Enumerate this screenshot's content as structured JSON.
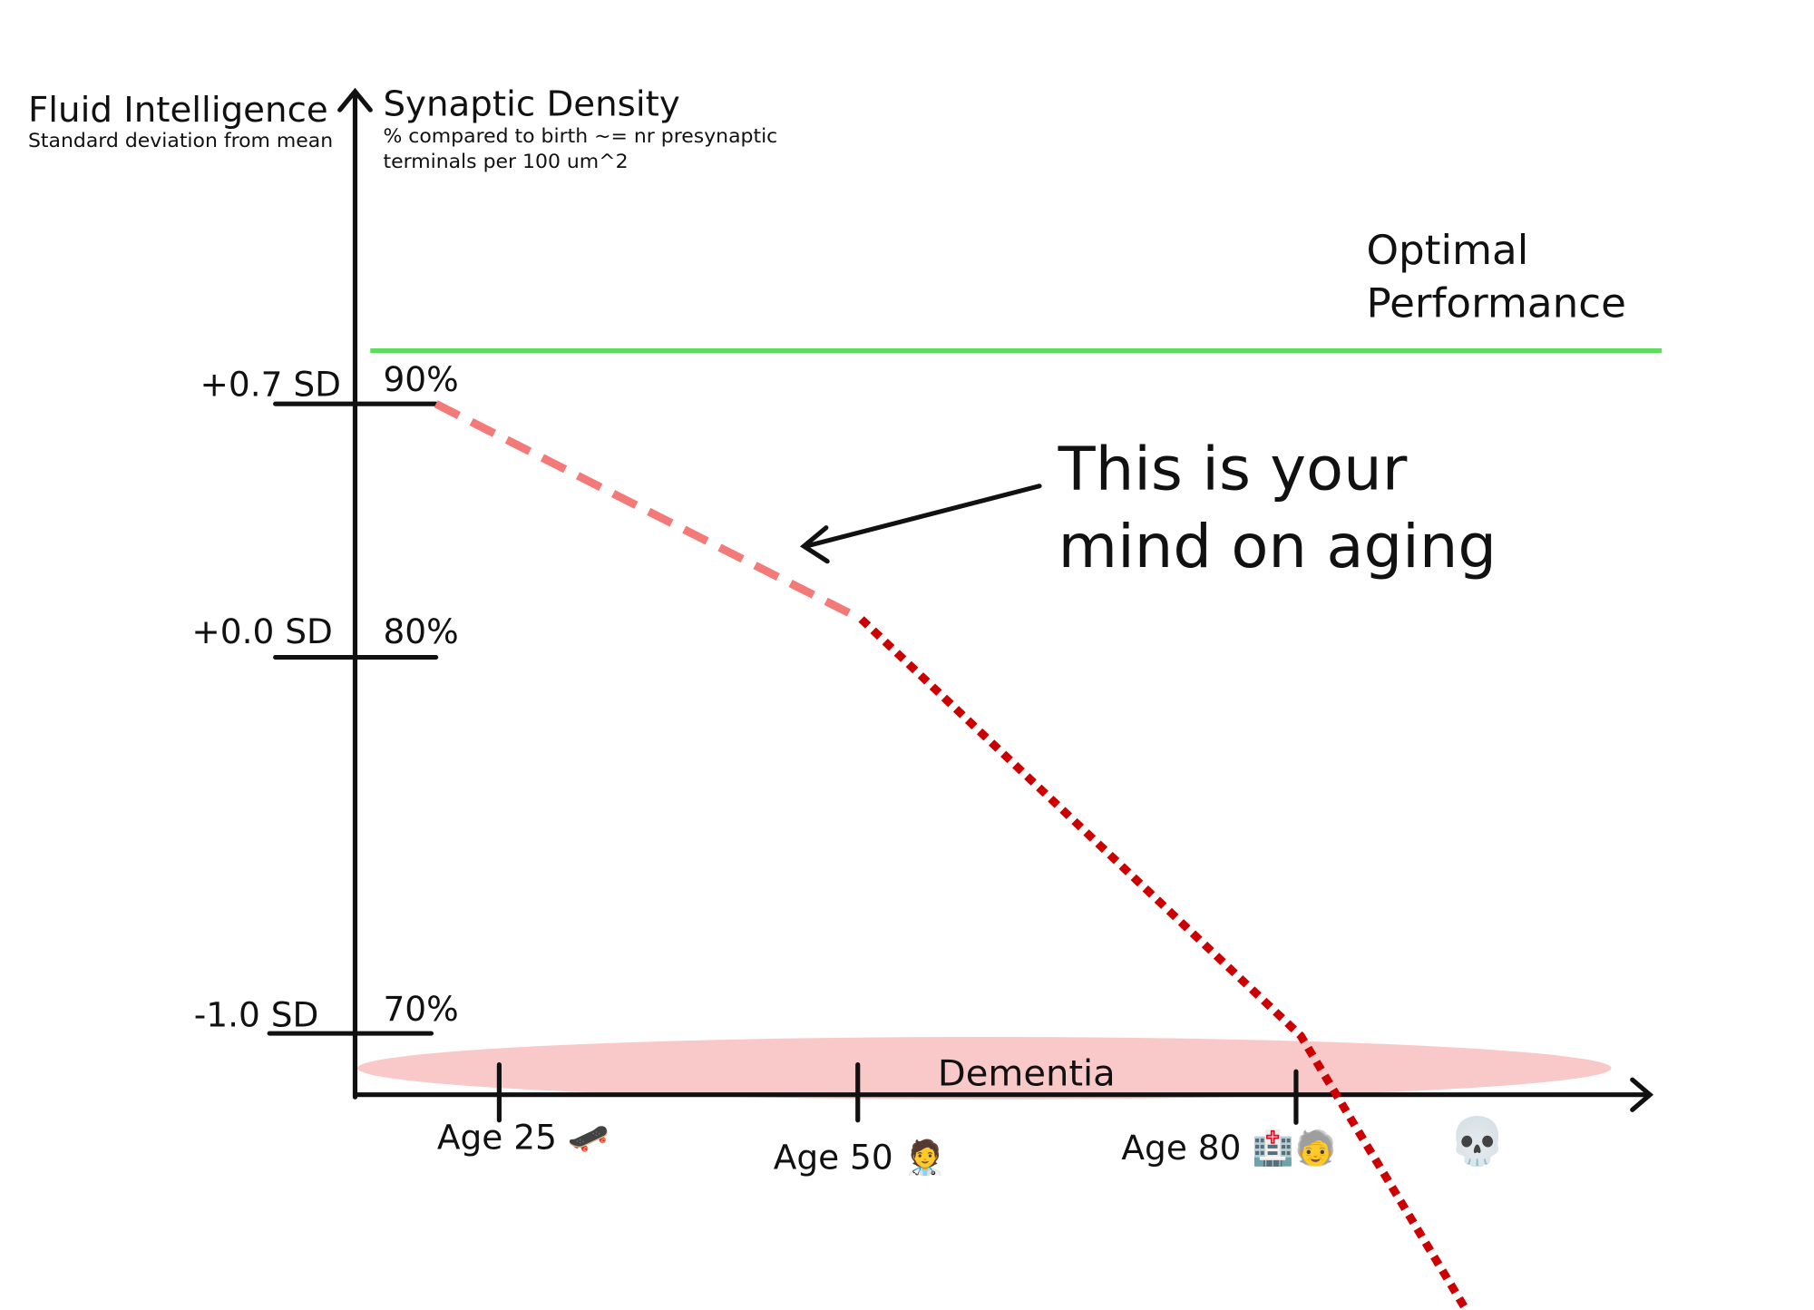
{
  "y_axis_left": {
    "title": "Fluid Intelligence",
    "subtitle": "Standard deviation from mean",
    "labels": [
      "+0.7 SD",
      "+0.0 SD",
      "-1.0 SD"
    ]
  },
  "y_axis_right": {
    "title": "Synaptic Density",
    "subtitle_lines": [
      "% compared to birth ~= nr presynaptic",
      "terminals per 100 um^2"
    ],
    "labels": [
      "90%",
      "80%",
      "70%"
    ]
  },
  "optimal_label": [
    "Optimal",
    "Performance"
  ],
  "annotation": [
    "This is your",
    "mind on aging"
  ],
  "dementia_label": "Dementia",
  "x_labels": [
    "Age 25 🛹",
    "Age 50 🧑‍⚕️",
    "Age 80 🏥🧓",
    "💀"
  ]
}
